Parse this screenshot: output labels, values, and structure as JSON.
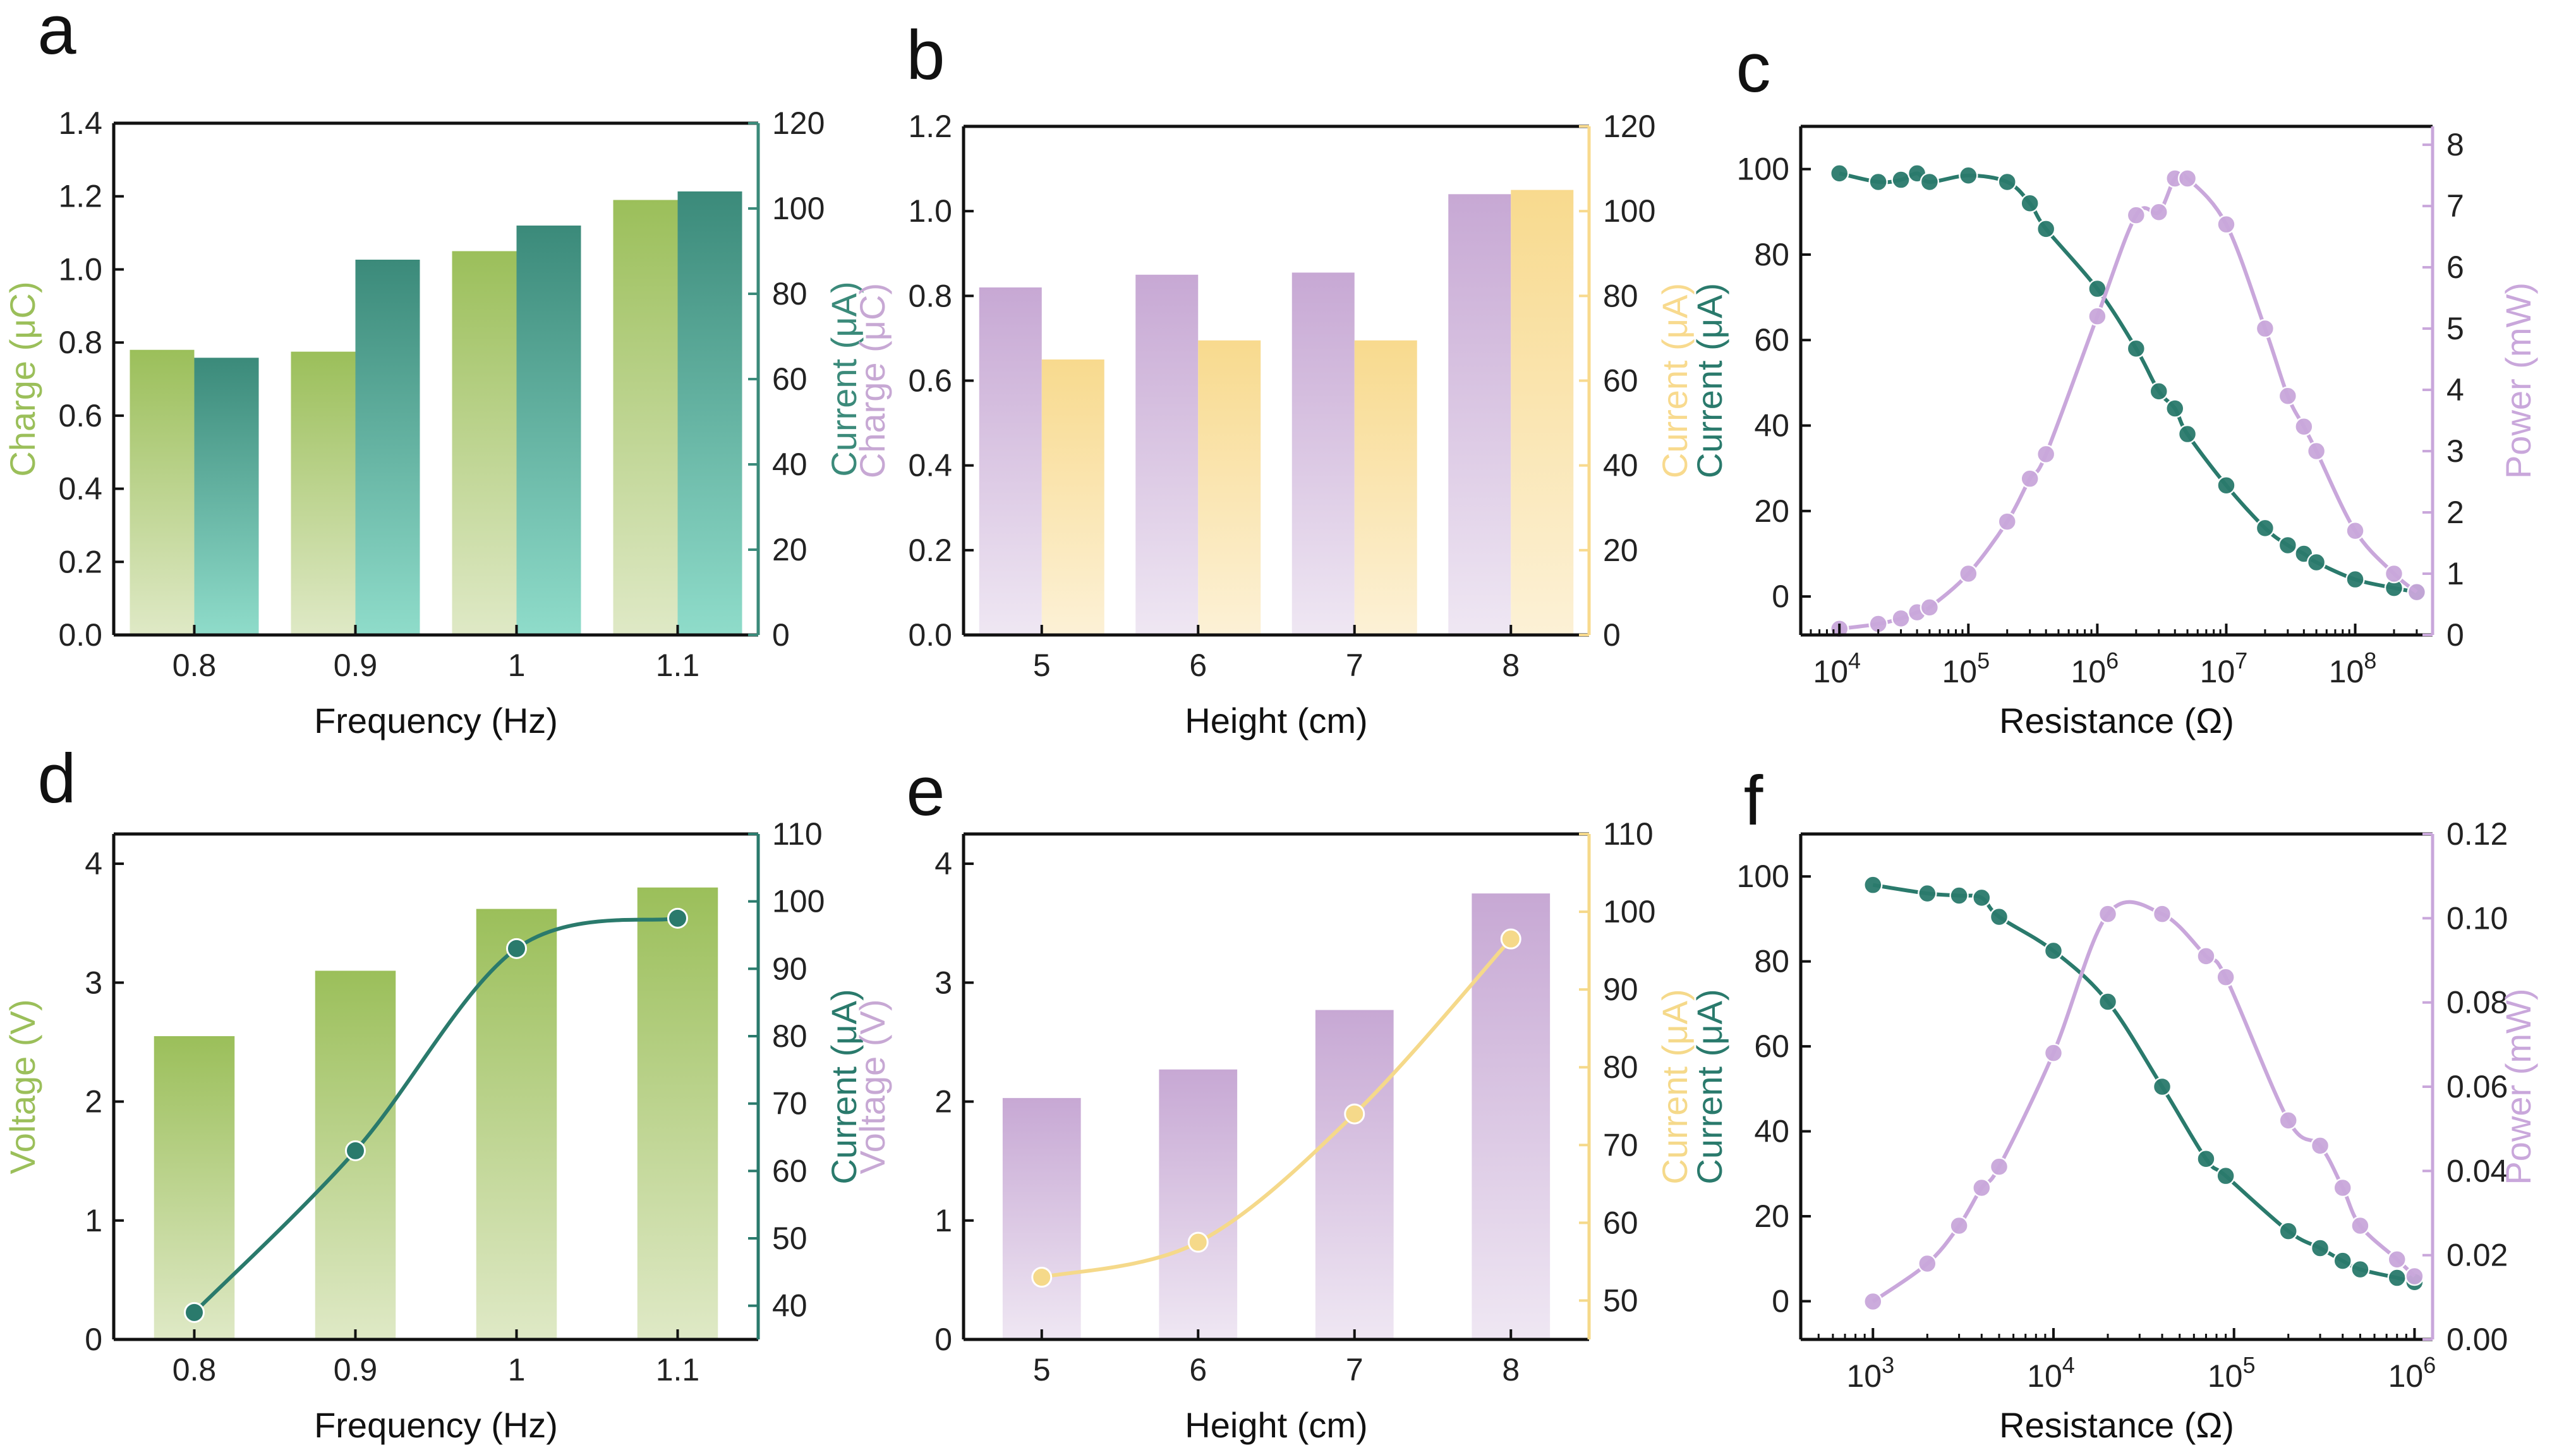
{
  "colors": {
    "green_light": "#9bbf5a",
    "green_pale": "#dfe9c6",
    "teal_dark": "#3b8a7a",
    "teal_light": "#8fdcca",
    "teal_line": "#2a7a6c",
    "purple": "#c7a8d4",
    "purple_pale": "#efe7f3",
    "purple_line": "#c9a7db",
    "yellow": "#f8da8e",
    "yellow_pale": "#fcf1d6",
    "yellow_line": "#f5d98a"
  },
  "chart_data": [
    {
      "panel": "a",
      "type": "bar",
      "categories": [
        "0.8",
        "0.9",
        "1",
        "1.1"
      ],
      "xlabel": "Frequency (Hz)",
      "ylabel_left": "Charge (μC)",
      "ylim_left": [
        0,
        1.4
      ],
      "yticks_left": [
        "0.0",
        "0.2",
        "0.4",
        "0.6",
        "0.8",
        "1.0",
        "1.2",
        "1.4"
      ],
      "ylabel_right": "Current (μA)",
      "ylim_right": [
        0,
        120
      ],
      "yticks_right": [
        "0",
        "20",
        "40",
        "60",
        "80",
        "100",
        "120"
      ],
      "series": [
        {
          "name": "Charge",
          "axis": "left",
          "values": [
            0.78,
            0.775,
            1.05,
            1.19
          ]
        },
        {
          "name": "Current",
          "axis": "right",
          "values": [
            65,
            88,
            96,
            104
          ]
        }
      ]
    },
    {
      "panel": "b",
      "type": "bar",
      "categories": [
        "5",
        "6",
        "7",
        "8"
      ],
      "xlabel": "Height (cm)",
      "ylabel_left": "Charge (μC)",
      "ylim_left": [
        0,
        1.2
      ],
      "yticks_left": [
        "0.0",
        "0.2",
        "0.4",
        "0.6",
        "0.8",
        "1.0",
        "1.2"
      ],
      "ylabel_right": "Current (μA)",
      "ylim_right": [
        0,
        120
      ],
      "yticks_right": [
        "0",
        "20",
        "40",
        "60",
        "80",
        "100",
        "120"
      ],
      "series": [
        {
          "name": "Charge",
          "axis": "left",
          "values": [
            0.82,
            0.85,
            0.855,
            1.04
          ]
        },
        {
          "name": "Current",
          "axis": "right",
          "values": [
            65,
            69.5,
            69.5,
            105
          ]
        }
      ]
    },
    {
      "panel": "c",
      "type": "line",
      "xscale": "log",
      "xlabel": "Resistance (Ω)",
      "xlim_log10": [
        3.7,
        8.6
      ],
      "xticks": [
        {
          "base": "10",
          "exp": "4"
        },
        {
          "base": "10",
          "exp": "5"
        },
        {
          "base": "10",
          "exp": "6"
        },
        {
          "base": "10",
          "exp": "7"
        },
        {
          "base": "10",
          "exp": "8"
        }
      ],
      "ylabel_left": "Current (μA)",
      "ylim_left": [
        -9,
        110
      ],
      "yticks_left": [
        "0",
        "20",
        "40",
        "60",
        "80",
        "100"
      ],
      "ylabel_right": "Power (mW)",
      "ylim_right": [
        0,
        8.3
      ],
      "yticks_right": [
        "0",
        "1",
        "2",
        "3",
        "4",
        "5",
        "6",
        "7",
        "8"
      ],
      "series": [
        {
          "name": "Current",
          "axis": "left",
          "x": [
            10000.0,
            20000.0,
            30000.0,
            40000.0,
            50000.0,
            100000.0,
            200000.0,
            300000.0,
            400000.0,
            1000000.0,
            2000000.0,
            3000000.0,
            4000000.0,
            5000000.0,
            10000000.0,
            20000000.0,
            30000000.0,
            40000000.0,
            50000000.0,
            100000000.0,
            200000000.0,
            300000000.0
          ],
          "values": [
            99,
            97,
            97.5,
            99,
            97,
            98.5,
            97,
            92,
            86,
            72,
            58,
            48,
            44,
            38,
            26,
            16,
            12,
            10,
            8,
            4,
            2,
            1
          ]
        },
        {
          "name": "Power",
          "axis": "right",
          "x": [
            10000.0,
            20000.0,
            30000.0,
            40000.0,
            50000.0,
            100000.0,
            200000.0,
            300000.0,
            400000.0,
            1000000.0,
            2000000.0,
            3000000.0,
            4000000.0,
            5000000.0,
            10000000.0,
            20000000.0,
            30000000.0,
            40000000.0,
            50000000.0,
            100000000.0,
            200000000.0,
            300000000.0
          ],
          "values": [
            0.1,
            0.18,
            0.27,
            0.37,
            0.45,
            1.0,
            1.85,
            2.55,
            2.95,
            5.2,
            6.85,
            6.9,
            7.45,
            7.45,
            6.7,
            5.0,
            3.9,
            3.4,
            3.0,
            1.7,
            1.0,
            0.7
          ]
        }
      ]
    },
    {
      "panel": "d",
      "type": "bar+line",
      "categories": [
        "0.8",
        "0.9",
        "1",
        "1.1"
      ],
      "xlabel": "Frequency (Hz)",
      "ylabel_left": "Voltage (V)",
      "ylim_left": [
        0,
        4.25
      ],
      "yticks_left": [
        "0",
        "1",
        "2",
        "3",
        "4"
      ],
      "ylabel_right": "Current (μA)",
      "ylim_right": [
        35,
        110
      ],
      "yticks_right": [
        "40",
        "50",
        "60",
        "70",
        "80",
        "90",
        "100",
        "110"
      ],
      "series": [
        {
          "name": "Voltage",
          "axis": "left",
          "kind": "bar",
          "values": [
            2.55,
            3.1,
            3.62,
            3.8
          ]
        },
        {
          "name": "Current",
          "axis": "right",
          "kind": "line",
          "values": [
            39,
            63,
            93,
            97.5
          ]
        }
      ]
    },
    {
      "panel": "e",
      "type": "bar+line",
      "categories": [
        "5",
        "6",
        "7",
        "8"
      ],
      "xlabel": "Height (cm)",
      "ylabel_left": "Voltage (V)",
      "ylim_left": [
        0,
        4.25
      ],
      "yticks_left": [
        "0",
        "1",
        "2",
        "3",
        "4"
      ],
      "ylabel_right": "Current (μA)",
      "ylim_right": [
        45,
        110
      ],
      "yticks_right": [
        "50",
        "60",
        "70",
        "80",
        "90",
        "100",
        "110"
      ],
      "series": [
        {
          "name": "Voltage",
          "axis": "left",
          "kind": "bar",
          "values": [
            2.03,
            2.27,
            2.77,
            3.75
          ]
        },
        {
          "name": "Current",
          "axis": "right",
          "kind": "line",
          "values": [
            53,
            57.5,
            74,
            96.5
          ]
        }
      ]
    },
    {
      "panel": "f",
      "type": "line",
      "xscale": "log",
      "xlabel": "Resistance (Ω)",
      "xlim_log10": [
        2.6,
        6.1
      ],
      "xticks": [
        {
          "base": "10",
          "exp": "3"
        },
        {
          "base": "10",
          "exp": "4"
        },
        {
          "base": "10",
          "exp": "5"
        },
        {
          "base": "10",
          "exp": "6"
        }
      ],
      "ylabel_left": "Current (μA)",
      "ylim_left": [
        -9,
        110
      ],
      "yticks_left": [
        "0",
        "20",
        "40",
        "60",
        "80",
        "100"
      ],
      "ylabel_right": "Power (mW)",
      "ylim_right": [
        0,
        0.12
      ],
      "yticks_right": [
        "0.00",
        "0.02",
        "0.04",
        "0.06",
        "0.08",
        "0.10",
        "0.12"
      ],
      "series": [
        {
          "name": "Current",
          "axis": "left",
          "x": [
            1000.0,
            2000.0,
            3000.0,
            4000.0,
            5000.0,
            10000.0,
            20000.0,
            40000.0,
            70000.0,
            90000.0,
            200000.0,
            300000.0,
            400000.0,
            500000.0,
            800000.0,
            1000000.0
          ],
          "values": [
            98,
            96,
            95.5,
            95,
            90.5,
            82.5,
            70.5,
            50.5,
            33.5,
            29.5,
            16.5,
            12.5,
            9.5,
            7.5,
            5.5,
            4.5
          ]
        },
        {
          "name": "Power",
          "axis": "right",
          "x": [
            1000.0,
            2000.0,
            3000.0,
            4000.0,
            5000.0,
            10000.0,
            20000.0,
            40000.0,
            70000.0,
            90000.0,
            200000.0,
            300000.0,
            400000.0,
            500000.0,
            800000.0,
            1000000.0
          ],
          "values": [
            0.009,
            0.018,
            0.027,
            0.036,
            0.041,
            0.068,
            0.101,
            0.101,
            0.091,
            0.086,
            0.052,
            0.046,
            0.036,
            0.027,
            0.019,
            0.015
          ]
        }
      ]
    }
  ]
}
